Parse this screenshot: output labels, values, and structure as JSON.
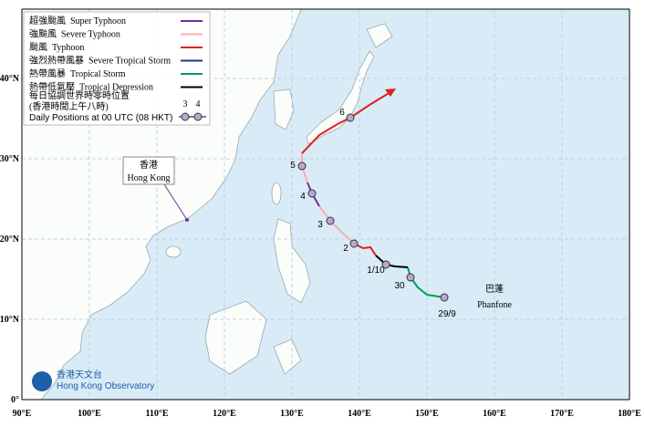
{
  "map": {
    "x_labels": [
      "90°E",
      "100°E",
      "110°E",
      "120°E",
      "130°E",
      "140°E",
      "150°E",
      "160°E",
      "170°E",
      "180°E"
    ],
    "y_labels": [
      "0°",
      "10°N",
      "20°N",
      "30°N",
      "40°N"
    ],
    "legend": {
      "items": [
        "超強颱風  Super Typhoon",
        "強颱風  Severe Typhoon",
        "颱風  Typhoon",
        "強烈熱帶風暴  Severe Tropical Storm",
        "熱帶風暴  Tropical Storm",
        "熱帶低氣壓  Tropical Depression"
      ],
      "positions_zh_1": "每日協調世界時零時位置",
      "positions_zh_2": "(香港時間上午八時)",
      "positions_en": "Daily Positions at 00 UTC (08 HKT)",
      "sample_days": [
        "3",
        "4"
      ]
    },
    "hong_kong": {
      "zh": "香港",
      "en": "Hong Kong"
    },
    "storm": {
      "zh": "巴蓬",
      "en": "Phanfone"
    },
    "day_labels": [
      "29/9",
      "30",
      "1/10",
      "2",
      "3",
      "4",
      "5",
      "6"
    ],
    "logo": {
      "zh": "香港天文台",
      "en": "Hong Kong Observatory"
    }
  }
}
